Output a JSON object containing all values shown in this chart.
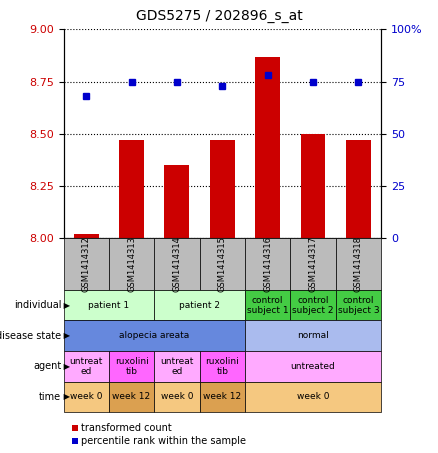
{
  "title": "GDS5275 / 202896_s_at",
  "samples": [
    "GSM1414312",
    "GSM1414313",
    "GSM1414314",
    "GSM1414315",
    "GSM1414316",
    "GSM1414317",
    "GSM1414318"
  ],
  "red_values": [
    8.02,
    8.47,
    8.35,
    8.47,
    8.87,
    8.5,
    8.47
  ],
  "blue_values": [
    68,
    75,
    75,
    73,
    78,
    75,
    75
  ],
  "ylim_left": [
    8.0,
    9.0
  ],
  "ylim_right": [
    0,
    100
  ],
  "yticks_left": [
    8.0,
    8.25,
    8.5,
    8.75,
    9.0
  ],
  "yticks_right": [
    0,
    25,
    50,
    75,
    100
  ],
  "red_color": "#cc0000",
  "blue_color": "#0000cc",
  "bar_bottom": 8.0,
  "individual_row": {
    "groups": [
      {
        "label": "patient 1",
        "span": [
          0,
          2
        ],
        "color": "#ccffcc"
      },
      {
        "label": "patient 2",
        "span": [
          2,
          4
        ],
        "color": "#ccffcc"
      },
      {
        "label": "control\nsubject 1",
        "span": [
          4,
          5
        ],
        "color": "#44cc44"
      },
      {
        "label": "control\nsubject 2",
        "span": [
          5,
          6
        ],
        "color": "#44cc44"
      },
      {
        "label": "control\nsubject 3",
        "span": [
          6,
          7
        ],
        "color": "#44cc44"
      }
    ]
  },
  "disease_state_row": {
    "groups": [
      {
        "label": "alopecia areata",
        "span": [
          0,
          4
        ],
        "color": "#6688dd"
      },
      {
        "label": "normal",
        "span": [
          4,
          7
        ],
        "color": "#aabbee"
      }
    ]
  },
  "agent_row": {
    "groups": [
      {
        "label": "untreat\ned",
        "span": [
          0,
          1
        ],
        "color": "#ffaaff"
      },
      {
        "label": "ruxolini\ntib",
        "span": [
          1,
          2
        ],
        "color": "#ff66ff"
      },
      {
        "label": "untreat\ned",
        "span": [
          2,
          3
        ],
        "color": "#ffaaff"
      },
      {
        "label": "ruxolini\ntib",
        "span": [
          3,
          4
        ],
        "color": "#ff66ff"
      },
      {
        "label": "untreated",
        "span": [
          4,
          7
        ],
        "color": "#ffaaff"
      }
    ]
  },
  "time_row": {
    "groups": [
      {
        "label": "week 0",
        "span": [
          0,
          1
        ],
        "color": "#f5c880"
      },
      {
        "label": "week 12",
        "span": [
          1,
          2
        ],
        "color": "#dba050"
      },
      {
        "label": "week 0",
        "span": [
          2,
          3
        ],
        "color": "#f5c880"
      },
      {
        "label": "week 12",
        "span": [
          3,
          4
        ],
        "color": "#dba050"
      },
      {
        "label": "week 0",
        "span": [
          4,
          7
        ],
        "color": "#f5c880"
      }
    ]
  },
  "row_labels": [
    "individual",
    "disease state",
    "agent",
    "time"
  ],
  "legend": [
    {
      "label": "transformed count",
      "color": "#cc0000"
    },
    {
      "label": "percentile rank within the sample",
      "color": "#0000cc"
    }
  ],
  "sample_header_color": "#bbbbbb"
}
